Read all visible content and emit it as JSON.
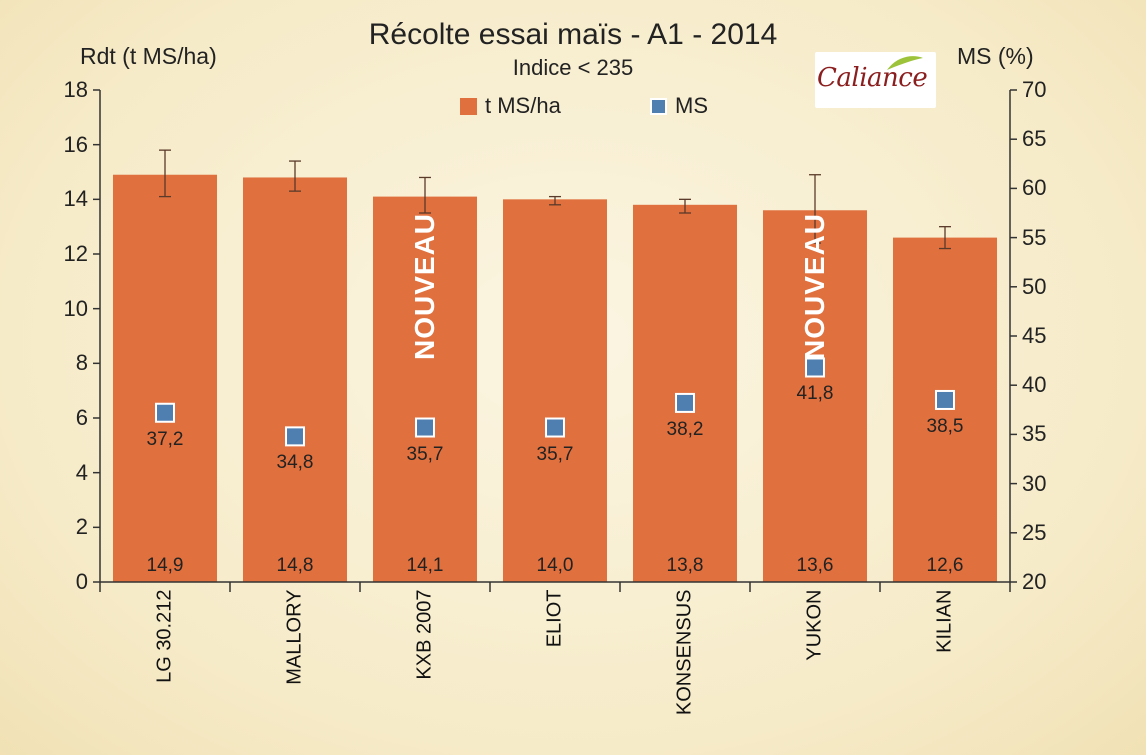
{
  "chart_data": {
    "type": "bar",
    "title": "Récolte essai maïs - A1 - 2014",
    "subtitle": "Indice < 235",
    "ylabel": "Rdt (t MS/ha)",
    "ylabel_right": "MS (%)",
    "ylim": [
      0,
      18
    ],
    "ylim_right": [
      20,
      70
    ],
    "yticks": [
      "0",
      "2",
      "4",
      "6",
      "8",
      "10",
      "12",
      "14",
      "16",
      "18"
    ],
    "yticks_right": [
      "20",
      "25",
      "30",
      "35",
      "40",
      "45",
      "50",
      "55",
      "60",
      "65",
      "70"
    ],
    "categories": [
      "LG 30.212",
      "MALLORY",
      "KXB 2007",
      "ELIOT",
      "KONSENSUS",
      "YUKON",
      "KILIAN"
    ],
    "series": [
      {
        "name": "t MS/ha",
        "type": "bar",
        "axis": "left",
        "color": "#e0703e",
        "values": [
          14.9,
          14.8,
          14.1,
          14.0,
          13.8,
          13.6,
          12.6
        ],
        "labels": [
          "14,9",
          "14,8",
          "14,1",
          "14,0",
          "13,8",
          "13,6",
          "12,6"
        ],
        "error_low": [
          14.1,
          14.3,
          13.5,
          13.8,
          13.5,
          12.4,
          12.2
        ],
        "error_high": [
          15.8,
          15.4,
          14.8,
          14.1,
          14.0,
          14.9,
          13.0
        ]
      },
      {
        "name": "MS",
        "type": "scatter",
        "axis": "right",
        "color": "#4f7fb0",
        "values": [
          37.2,
          34.8,
          35.7,
          35.7,
          38.2,
          41.8,
          38.5
        ],
        "labels": [
          "37,2",
          "34,8",
          "35,7",
          "35,7",
          "38,2",
          "41,8",
          "38,5"
        ]
      }
    ],
    "annotations": [
      {
        "category": "KXB 2007",
        "text": "NOUVEAU"
      },
      {
        "category": "YUKON",
        "text": "NOUVEAU"
      }
    ],
    "legend": "top",
    "grid": false
  },
  "logo": {
    "text": "Caliance",
    "text_color": "#8b1e1e",
    "leaf_color": "#9cc33a"
  },
  "background_color": "#f6ebc8"
}
